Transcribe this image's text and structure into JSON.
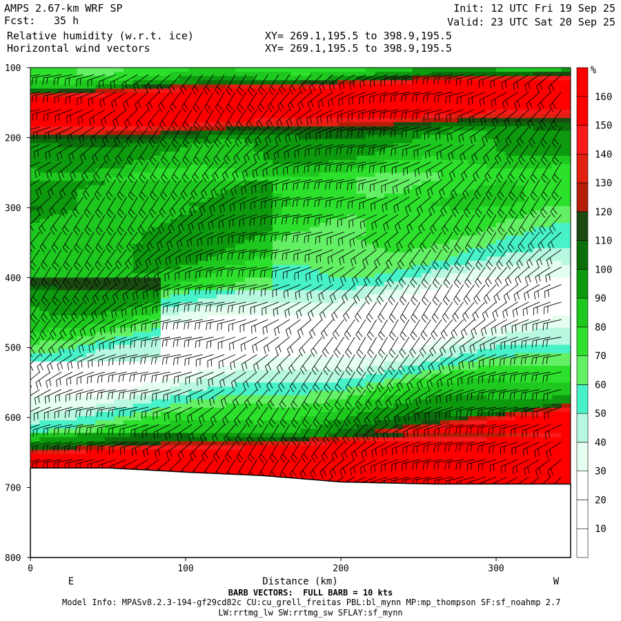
{
  "header": {
    "model_title": "AMPS 2.67-km WRF SP",
    "forecast_label": "Fcst:",
    "forecast_hours": "35 h",
    "field_1": "Relative humidity (w.r.t. ice)",
    "field_2": "Horizontal wind vectors",
    "init_time": "Init: 12 UTC Fri 19 Sep 25",
    "valid_time": "Valid: 23 UTC Sat 20 Sep 25",
    "xsection_1": "XY= 269.1,195.5 to 398.9,195.5",
    "xsection_2": "XY= 269.1,195.5 to 398.9,195.5"
  },
  "footer": {
    "barb_note": "BARB VECTORS:  FULL BARB = 10 kts",
    "model_info": "Model Info: MPASv8.2.3-194-gf29cd82c CU:cu_grell_freitas PBL:bl_mynn MP:mp_thompson SF:sf_noahmp 2.7",
    "model_info_2": "LW:rrtmg_lw SW:rrtmg_sw SFLAY:sf_mynn"
  },
  "chart_data": {
    "type": "heatmap",
    "title": "Relative humidity (w.r.t. ice)",
    "xlabel": "Distance (km)",
    "ylabel": "",
    "xlim": [
      0,
      348
    ],
    "ylim": [
      800,
      100
    ],
    "x_ticks": [
      0,
      100,
      200,
      300
    ],
    "y_ticks": [
      100,
      200,
      300,
      400,
      500,
      600,
      700,
      800
    ],
    "direction_left": "E",
    "direction_right": "W",
    "colorbar": {
      "unit": "%",
      "levels": [
        10,
        20,
        30,
        40,
        50,
        60,
        70,
        80,
        90,
        100,
        110,
        120,
        130,
        140,
        150,
        160
      ],
      "colors": [
        "#ffffff",
        "#ffffff",
        "#ffffff",
        "#e4fef0",
        "#b8f8e0",
        "#48f2c8",
        "#64f064",
        "#2ce02c",
        "#1ec81e",
        "#0e9a0e",
        "#0a6e0a",
        "#1a4a10",
        "#b41e08",
        "#e02010",
        "#f81a1a",
        "#ff0000",
        "#ff0000"
      ]
    },
    "rh_profile": [
      {
        "p": 100,
        "rh": 75
      },
      {
        "p": 115,
        "rh": 95
      },
      {
        "p": 130,
        "rh": 165
      },
      {
        "p": 150,
        "rh": 168
      },
      {
        "p": 170,
        "rh": 160
      },
      {
        "p": 185,
        "rh": 115
      },
      {
        "p": 200,
        "rh": 95
      },
      {
        "p": 230,
        "rh": 88
      },
      {
        "p": 260,
        "rh": 72
      },
      {
        "p": 300,
        "rh": 78
      },
      {
        "p": 350,
        "rh": 72
      },
      {
        "p": 400,
        "rh": 58
      },
      {
        "p": 430,
        "rh": 38
      },
      {
        "p": 460,
        "rh": 18
      },
      {
        "p": 490,
        "rh": 15
      },
      {
        "p": 510,
        "rh": 30
      },
      {
        "p": 540,
        "rh": 48
      },
      {
        "p": 570,
        "rh": 72
      },
      {
        "p": 600,
        "rh": 88
      },
      {
        "p": 625,
        "rh": 100
      },
      {
        "p": 640,
        "rh": 160
      },
      {
        "p": 660,
        "rh": 168
      },
      {
        "p": 680,
        "rh": 165
      }
    ],
    "surface_pressure": [
      {
        "x": 0,
        "p": 672
      },
      {
        "x": 50,
        "p": 672
      },
      {
        "x": 100,
        "p": 678
      },
      {
        "x": 150,
        "p": 683
      },
      {
        "x": 200,
        "p": 692
      },
      {
        "x": 260,
        "p": 695
      },
      {
        "x": 348,
        "p": 695
      }
    ],
    "wind_barbs": {
      "x_spacing_km": 7,
      "p_spacing_hpa": 25,
      "typical_speed_kts": 20
    }
  }
}
